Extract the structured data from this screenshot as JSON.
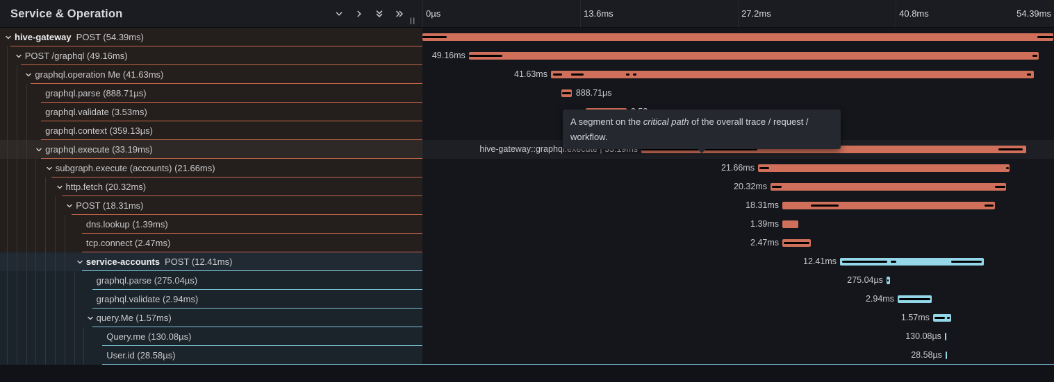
{
  "header": {
    "title": "Service & Operation",
    "icons": [
      "chevron-down",
      "chevron-right",
      "double-chevron-down",
      "double-chevron-right"
    ],
    "resize_handle": "||"
  },
  "timeline": {
    "total_ms": 54.39,
    "ticks": [
      {
        "label": "0µs",
        "ms": 0
      },
      {
        "label": "13.6ms",
        "ms": 13.6
      },
      {
        "label": "27.2ms",
        "ms": 27.2
      },
      {
        "label": "40.8ms",
        "ms": 40.8
      },
      {
        "label": "54.39ms",
        "ms": 54.39,
        "align": "right"
      }
    ]
  },
  "tooltip": {
    "prefix": "A segment on the ",
    "emphasis": "critical path",
    "suffix": " of the overall trace / request / workflow."
  },
  "colors": {
    "red_bar": "#d0705a",
    "red_border": "#c8684c",
    "red_row_bg": "#241e1c",
    "row_hover_bg": "#2e2926",
    "timeline_hover_bg": "#1e1f25",
    "blue_bar": "#94d7e8",
    "blue_border": "#7ec7dc",
    "blue_row_bg": "#1b232b",
    "blue_service_row_bg": "#212a33",
    "critical_path": "#000000"
  },
  "rows": [
    {
      "service": "hive-gateway",
      "op": "POST (54.39ms)",
      "level": 0,
      "expandable": true,
      "color": "red",
      "start_ms": 0,
      "dur_ms": 54.39,
      "bar_label": null,
      "label_side": null,
      "crit": [
        [
          0,
          0.038
        ],
        [
          0.975,
          1
        ]
      ],
      "hovered": false
    },
    {
      "service": null,
      "op": "POST /graphql (49.16ms)",
      "level": 1,
      "expandable": true,
      "color": "red",
      "start_ms": 4.0,
      "dur_ms": 49.16,
      "bar_label": "49.16ms",
      "label_side": "left",
      "crit": [
        [
          0,
          0.059
        ],
        [
          0.988,
          0.997
        ]
      ],
      "hovered": false
    },
    {
      "service": null,
      "op": "graphql.operation Me (41.63ms)",
      "level": 2,
      "expandable": true,
      "color": "red",
      "start_ms": 11.08,
      "dur_ms": 41.63,
      "bar_label": "41.63ms",
      "label_side": "left",
      "crit": [
        [
          0.004,
          0.023
        ],
        [
          0.042,
          0.068
        ],
        [
          0.155,
          0.162
        ],
        [
          0.17,
          0.177
        ],
        [
          0.985,
          0.994
        ]
      ],
      "hovered": false
    },
    {
      "service": null,
      "op": "graphql.parse (888.71µs)",
      "level": 3,
      "expandable": false,
      "color": "red",
      "start_ms": 11.98,
      "dur_ms": 0.88871,
      "bar_label": "888.71µs",
      "label_side": "right",
      "crit": [
        [
          0.08,
          0.92
        ]
      ],
      "hovered": false
    },
    {
      "service": null,
      "op": "graphql.validate (3.53ms)",
      "level": 3,
      "expandable": false,
      "color": "red",
      "start_ms": 14.08,
      "dur_ms": 3.53,
      "bar_label": "3.53ms",
      "label_side": "right",
      "crit": [],
      "hovered": false
    },
    {
      "service": null,
      "op": "graphql.context (359.13µs)",
      "level": 3,
      "expandable": false,
      "color": "red",
      "start_ms": 18.09,
      "dur_ms": 0.35913,
      "bar_label": "359.13µs",
      "label_side": "right",
      "crit": [],
      "hovered": false
    },
    {
      "service": null,
      "op": "graphql.execute (33.19ms)",
      "level": 3,
      "expandable": true,
      "color": "red",
      "start_ms": 18.87,
      "dur_ms": 33.19,
      "bar_label": "hive-gateway::graphql.execute | 33.19ms",
      "label_side": "left",
      "crit": [
        [
          0,
          0.301
        ],
        [
          0.928,
          0.991
        ]
      ],
      "hovered": true
    },
    {
      "service": null,
      "op": "subgraph.execute (accounts) (21.66ms)",
      "level": 4,
      "expandable": true,
      "color": "red",
      "start_ms": 28.93,
      "dur_ms": 21.66,
      "bar_label": "21.66ms",
      "label_side": "left",
      "crit": [
        [
          0.006,
          0.044
        ],
        [
          0.987,
          0.999
        ]
      ],
      "hovered": false
    },
    {
      "service": null,
      "op": "http.fetch (20.32ms)",
      "level": 5,
      "expandable": true,
      "color": "red",
      "start_ms": 30.01,
      "dur_ms": 20.32,
      "bar_label": "20.32ms",
      "label_side": "left",
      "crit": [
        [
          0.006,
          0.047
        ],
        [
          0.953,
          0.997
        ]
      ],
      "hovered": false
    },
    {
      "service": null,
      "op": "POST (18.31ms)",
      "level": 6,
      "expandable": true,
      "color": "red",
      "start_ms": 31.03,
      "dur_ms": 18.31,
      "bar_label": "18.31ms",
      "label_side": "left",
      "crit": [
        [
          0.134,
          0.265
        ],
        [
          0.951,
          0.994
        ]
      ],
      "hovered": false
    },
    {
      "service": null,
      "op": "dns.lookup (1.39ms)",
      "level": 7,
      "expandable": false,
      "color": "red",
      "start_ms": 31.03,
      "dur_ms": 1.39,
      "bar_label": "1.39ms",
      "label_side": "left",
      "crit": [],
      "hovered": false
    },
    {
      "service": null,
      "op": "tcp.connect (2.47ms)",
      "level": 7,
      "expandable": false,
      "color": "red",
      "start_ms": 31.03,
      "dur_ms": 2.47,
      "bar_label": "2.47ms",
      "label_side": "left",
      "crit": [
        [
          0.05,
          0.95
        ]
      ],
      "hovered": false
    },
    {
      "service": "service-accounts",
      "op": "POST (12.41ms)",
      "level": 7,
      "expandable": true,
      "color": "blue",
      "start_ms": 36.0,
      "dur_ms": 12.41,
      "bar_label": "12.41ms",
      "label_side": "left",
      "crit": [
        [
          0.015,
          0.328
        ],
        [
          0.353,
          0.391
        ],
        [
          0.773,
          0.985
        ]
      ],
      "hovered": false
    },
    {
      "service": null,
      "op": "graphql.parse (275.04µs)",
      "level": 8,
      "expandable": false,
      "color": "blue",
      "start_ms": 40.01,
      "dur_ms": 0.27504,
      "bar_label": "275.04µs",
      "label_side": "left",
      "crit": [
        [
          0.25,
          0.75
        ]
      ],
      "hovered": false
    },
    {
      "service": null,
      "op": "graphql.validate (2.94ms)",
      "level": 8,
      "expandable": false,
      "color": "blue",
      "start_ms": 40.97,
      "dur_ms": 2.94,
      "bar_label": "2.94ms",
      "label_side": "left",
      "crit": [
        [
          0.04,
          0.96
        ]
      ],
      "hovered": false
    },
    {
      "service": null,
      "op": "query.Me (1.57ms)",
      "level": 8,
      "expandable": true,
      "color": "blue",
      "start_ms": 44.02,
      "dur_ms": 1.57,
      "bar_label": "1.57ms",
      "label_side": "left",
      "crit": [
        [
          0.08,
          0.65
        ],
        [
          0.77,
          0.92
        ]
      ],
      "hovered": false
    },
    {
      "service": null,
      "op": "Query.me (130.08µs)",
      "level": 9,
      "expandable": false,
      "color": "blue",
      "start_ms": 45.04,
      "dur_ms": 0.13008,
      "bar_label": "130.08µs",
      "label_side": "left",
      "crit": [],
      "hovered": false
    },
    {
      "service": null,
      "op": "User.id (28.58µs)",
      "level": 9,
      "expandable": false,
      "color": "blue",
      "start_ms": 45.1,
      "dur_ms": 0.02858,
      "bar_label": "28.58µs",
      "label_side": "left",
      "crit": [],
      "hovered": false,
      "border_full": true
    }
  ]
}
